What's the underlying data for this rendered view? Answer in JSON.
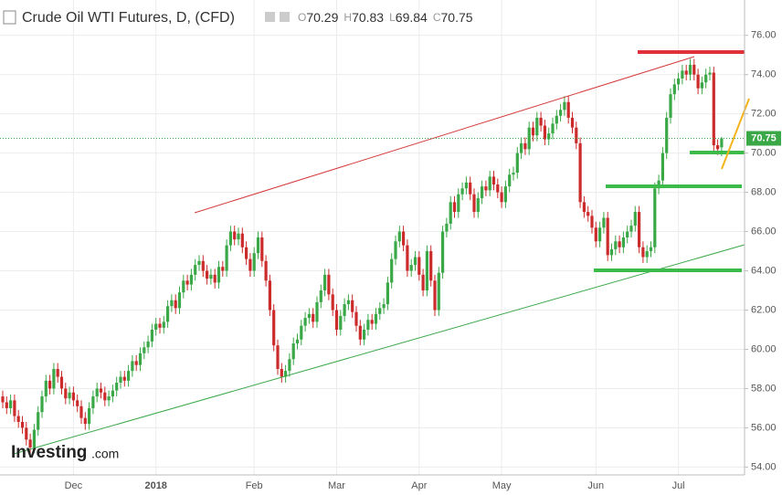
{
  "chart_data": {
    "type": "candlestick",
    "title": "Crude Oil WTI Futures, D, (CFD)",
    "header_labels": [
      "O",
      "H",
      "L",
      "C"
    ],
    "logo": {
      "name": "Investing",
      "suffix": ".com"
    },
    "up_color": "#3aa847",
    "down_color": "#cc2b2b",
    "grid": true,
    "ylim": [
      53.6,
      77.8
    ],
    "yticks": [
      {
        "value": 54,
        "label": "54.00"
      },
      {
        "value": 56,
        "label": "56.00"
      },
      {
        "value": 58,
        "label": "58.00"
      },
      {
        "value": 60,
        "label": "60.00"
      },
      {
        "value": 62,
        "label": "62.00"
      },
      {
        "value": 64,
        "label": "64.00"
      },
      {
        "value": 66,
        "label": "66.00"
      },
      {
        "value": 68,
        "label": "68.00"
      },
      {
        "value": 70,
        "label": "70.00"
      },
      {
        "value": 72,
        "label": "72.00"
      },
      {
        "value": 74,
        "label": "74.00"
      },
      {
        "value": 76,
        "label": "76.00"
      }
    ],
    "categories": [
      null,
      null,
      null,
      null,
      null,
      null,
      null,
      null,
      null,
      null,
      null,
      null,
      null,
      null,
      null,
      null,
      null,
      null,
      "Dec",
      null,
      null,
      null,
      null,
      null,
      null,
      null,
      null,
      null,
      null,
      null,
      null,
      null,
      null,
      null,
      null,
      null,
      null,
      null,
      null,
      "2018",
      null,
      null,
      null,
      null,
      null,
      null,
      null,
      null,
      null,
      null,
      null,
      null,
      null,
      null,
      null,
      null,
      null,
      null,
      null,
      null,
      null,
      null,
      null,
      null,
      "Feb",
      null,
      null,
      null,
      null,
      null,
      null,
      null,
      null,
      null,
      null,
      null,
      null,
      null,
      null,
      null,
      null,
      null,
      null,
      null,
      null,
      "Mar",
      null,
      null,
      null,
      null,
      null,
      null,
      null,
      null,
      null,
      null,
      null,
      null,
      null,
      null,
      null,
      null,
      null,
      null,
      null,
      null,
      "Apr",
      null,
      null,
      null,
      null,
      null,
      null,
      null,
      null,
      null,
      null,
      null,
      null,
      null,
      null,
      null,
      null,
      null,
      null,
      null,
      null,
      "May",
      null,
      null,
      null,
      null,
      null,
      null,
      null,
      null,
      null,
      null,
      null,
      null,
      null,
      null,
      null,
      null,
      null,
      null,
      null,
      null,
      null,
      null,
      null,
      "Jun",
      null,
      null,
      null,
      null,
      null,
      null,
      null,
      null,
      null,
      null,
      null,
      null,
      null,
      null,
      null,
      null,
      null,
      null,
      null,
      null,
      "Jul",
      null,
      null,
      null,
      null,
      null,
      null,
      null,
      null,
      null,
      null,
      null
    ],
    "ohlc": [
      [
        57.6,
        57.9,
        57.0,
        57.3
      ],
      [
        57.3,
        57.6,
        56.7,
        57.0
      ],
      [
        57.0,
        57.7,
        56.7,
        57.4
      ],
      [
        57.4,
        57.7,
        56.3,
        56.6
      ],
      [
        56.6,
        56.9,
        56.0,
        56.3
      ],
      [
        56.3,
        56.6,
        55.7,
        56.0
      ],
      [
        56.0,
        56.3,
        55.1,
        55.4
      ],
      [
        55.4,
        55.7,
        54.7,
        55.0
      ],
      [
        55.0,
        56.2,
        54.7,
        55.9
      ],
      [
        55.9,
        57.1,
        55.6,
        56.8
      ],
      [
        56.8,
        57.9,
        56.5,
        57.6
      ],
      [
        57.6,
        58.7,
        57.3,
        58.4
      ],
      [
        58.4,
        58.7,
        57.7,
        58.0
      ],
      [
        58.0,
        59.3,
        57.7,
        59.0
      ],
      [
        59.0,
        59.3,
        58.3,
        58.6
      ],
      [
        58.6,
        58.9,
        57.7,
        58.0
      ],
      [
        58.0,
        58.3,
        57.2,
        57.5
      ],
      [
        57.5,
        58.1,
        57.2,
        57.8
      ],
      [
        57.8,
        58.1,
        57.1,
        57.4
      ],
      [
        57.4,
        57.7,
        56.8,
        57.1
      ],
      [
        57.1,
        57.4,
        56.2,
        56.5
      ],
      [
        56.5,
        56.8,
        55.9,
        56.2
      ],
      [
        56.2,
        57.3,
        55.9,
        57.0
      ],
      [
        57.0,
        57.9,
        56.7,
        57.6
      ],
      [
        57.6,
        58.3,
        57.3,
        58.0
      ],
      [
        58.0,
        58.3,
        57.5,
        57.8
      ],
      [
        57.8,
        58.1,
        57.1,
        57.4
      ],
      [
        57.4,
        57.9,
        57.1,
        57.6
      ],
      [
        57.6,
        58.2,
        57.3,
        57.9
      ],
      [
        57.9,
        58.6,
        57.6,
        58.3
      ],
      [
        58.3,
        58.9,
        58.0,
        58.6
      ],
      [
        58.6,
        58.9,
        58.1,
        58.4
      ],
      [
        58.4,
        59.2,
        58.1,
        58.9
      ],
      [
        58.9,
        59.7,
        58.6,
        59.4
      ],
      [
        59.4,
        59.7,
        58.9,
        59.2
      ],
      [
        59.2,
        60.1,
        58.9,
        59.8
      ],
      [
        59.8,
        60.4,
        59.5,
        60.1
      ],
      [
        60.1,
        60.7,
        59.8,
        60.4
      ],
      [
        60.4,
        61.3,
        60.1,
        61.0
      ],
      [
        61.0,
        61.6,
        60.7,
        61.3
      ],
      [
        61.3,
        61.6,
        60.8,
        61.1
      ],
      [
        61.1,
        61.7,
        60.8,
        61.4
      ],
      [
        61.4,
        62.5,
        61.1,
        62.2
      ],
      [
        62.2,
        62.8,
        61.9,
        62.5
      ],
      [
        62.5,
        62.8,
        61.8,
        62.1
      ],
      [
        62.1,
        63.2,
        61.8,
        62.9
      ],
      [
        62.9,
        63.8,
        62.6,
        63.5
      ],
      [
        63.5,
        63.8,
        63.0,
        63.3
      ],
      [
        63.3,
        64.1,
        63.0,
        63.8
      ],
      [
        63.8,
        64.6,
        63.5,
        64.3
      ],
      [
        64.3,
        64.8,
        64.0,
        64.5
      ],
      [
        64.5,
        64.8,
        63.7,
        64.0
      ],
      [
        64.0,
        64.3,
        63.3,
        63.6
      ],
      [
        63.6,
        64.1,
        63.3,
        63.8
      ],
      [
        63.8,
        64.1,
        63.1,
        63.4
      ],
      [
        63.4,
        64.5,
        63.1,
        64.2
      ],
      [
        64.2,
        64.5,
        63.7,
        64.0
      ],
      [
        64.0,
        65.6,
        63.7,
        65.3
      ],
      [
        65.3,
        66.3,
        65.0,
        66.0
      ],
      [
        66.0,
        66.3,
        65.3,
        65.6
      ],
      [
        65.6,
        66.2,
        65.3,
        65.9
      ],
      [
        65.9,
        66.2,
        64.9,
        65.2
      ],
      [
        65.2,
        65.5,
        64.3,
        64.6
      ],
      [
        64.6,
        64.9,
        63.7,
        64.0
      ],
      [
        64.0,
        65.2,
        63.7,
        64.9
      ],
      [
        64.9,
        66.0,
        64.6,
        65.7
      ],
      [
        65.7,
        66.0,
        64.2,
        64.5
      ],
      [
        64.5,
        64.8,
        63.2,
        63.5
      ],
      [
        63.5,
        63.8,
        61.7,
        62.0
      ],
      [
        62.0,
        62.3,
        59.9,
        60.2
      ],
      [
        60.2,
        60.5,
        58.7,
        59.0
      ],
      [
        59.0,
        59.3,
        58.3,
        58.6
      ],
      [
        58.6,
        59.2,
        58.3,
        58.9
      ],
      [
        58.9,
        59.8,
        58.6,
        59.5
      ],
      [
        59.5,
        60.6,
        59.2,
        60.3
      ],
      [
        60.3,
        60.8,
        60.0,
        60.5
      ],
      [
        60.5,
        61.5,
        60.2,
        61.2
      ],
      [
        61.2,
        61.9,
        60.9,
        61.6
      ],
      [
        61.6,
        62.1,
        61.3,
        61.8
      ],
      [
        61.8,
        62.1,
        61.1,
        61.4
      ],
      [
        61.4,
        62.7,
        61.1,
        62.4
      ],
      [
        62.4,
        63.3,
        62.1,
        63.0
      ],
      [
        63.0,
        64.1,
        62.7,
        63.8
      ],
      [
        63.8,
        64.1,
        62.5,
        62.8
      ],
      [
        62.8,
        63.1,
        61.7,
        62.0
      ],
      [
        62.0,
        62.3,
        60.7,
        61.0
      ],
      [
        61.0,
        62.0,
        60.7,
        61.7
      ],
      [
        61.7,
        62.6,
        61.4,
        62.3
      ],
      [
        62.3,
        62.8,
        62.0,
        62.5
      ],
      [
        62.5,
        62.8,
        61.6,
        61.9
      ],
      [
        61.9,
        62.2,
        60.9,
        61.2
      ],
      [
        61.2,
        61.5,
        60.2,
        60.5
      ],
      [
        60.5,
        61.3,
        60.2,
        61.0
      ],
      [
        61.0,
        61.8,
        60.7,
        61.5
      ],
      [
        61.5,
        61.8,
        61.0,
        61.3
      ],
      [
        61.3,
        62.1,
        61.0,
        61.8
      ],
      [
        61.8,
        62.4,
        61.5,
        62.1
      ],
      [
        62.1,
        62.6,
        61.8,
        62.3
      ],
      [
        62.3,
        63.7,
        62.0,
        63.4
      ],
      [
        63.4,
        64.9,
        63.1,
        64.6
      ],
      [
        64.6,
        65.8,
        64.3,
        65.5
      ],
      [
        65.5,
        66.3,
        65.2,
        66.0
      ],
      [
        66.0,
        66.3,
        65.0,
        65.3
      ],
      [
        65.3,
        65.6,
        63.7,
        64.0
      ],
      [
        64.0,
        64.6,
        63.7,
        64.3
      ],
      [
        64.3,
        65.0,
        64.0,
        64.7
      ],
      [
        64.7,
        65.0,
        63.5,
        63.8
      ],
      [
        63.8,
        64.1,
        62.7,
        63.0
      ],
      [
        63.0,
        65.3,
        62.7,
        65.0
      ],
      [
        65.0,
        65.3,
        63.2,
        63.5
      ],
      [
        63.5,
        63.8,
        61.7,
        62.0
      ],
      [
        62.0,
        64.2,
        61.7,
        63.9
      ],
      [
        63.9,
        66.3,
        63.6,
        66.0
      ],
      [
        66.0,
        66.7,
        65.7,
        66.4
      ],
      [
        66.4,
        67.8,
        66.1,
        67.5
      ],
      [
        67.5,
        67.8,
        66.7,
        67.0
      ],
      [
        67.0,
        68.2,
        66.7,
        67.9
      ],
      [
        67.9,
        68.5,
        67.6,
        68.2
      ],
      [
        68.2,
        68.8,
        67.9,
        68.5
      ],
      [
        68.5,
        68.8,
        67.6,
        67.9
      ],
      [
        67.9,
        68.2,
        66.7,
        67.0
      ],
      [
        67.0,
        68.0,
        66.7,
        67.7
      ],
      [
        67.7,
        68.6,
        67.4,
        68.3
      ],
      [
        68.3,
        68.6,
        67.8,
        68.1
      ],
      [
        68.1,
        69.1,
        67.8,
        68.8
      ],
      [
        68.8,
        69.1,
        68.1,
        68.4
      ],
      [
        68.4,
        68.7,
        67.7,
        68.0
      ],
      [
        68.0,
        68.3,
        67.2,
        67.5
      ],
      [
        67.5,
        68.6,
        67.2,
        68.3
      ],
      [
        68.3,
        69.2,
        68.0,
        68.9
      ],
      [
        68.9,
        69.3,
        68.6,
        69.0
      ],
      [
        69.0,
        70.3,
        68.7,
        70.0
      ],
      [
        70.0,
        70.8,
        69.7,
        70.5
      ],
      [
        70.5,
        70.8,
        69.9,
        70.2
      ],
      [
        70.2,
        71.6,
        69.9,
        71.3
      ],
      [
        71.3,
        71.6,
        70.6,
        70.9
      ],
      [
        70.9,
        72.1,
        70.6,
        71.8
      ],
      [
        71.8,
        72.1,
        71.1,
        71.4
      ],
      [
        71.4,
        71.7,
        70.4,
        70.7
      ],
      [
        70.7,
        71.3,
        70.4,
        71.0
      ],
      [
        71.0,
        71.8,
        70.7,
        71.5
      ],
      [
        71.5,
        72.2,
        71.2,
        71.9
      ],
      [
        71.9,
        72.5,
        71.6,
        72.2
      ],
      [
        72.2,
        72.9,
        71.9,
        72.6
      ],
      [
        72.6,
        72.9,
        71.5,
        71.8
      ],
      [
        71.8,
        72.1,
        71.0,
        71.3
      ],
      [
        71.3,
        71.6,
        70.2,
        70.5
      ],
      [
        70.5,
        70.8,
        67.2,
        67.5
      ],
      [
        67.5,
        67.8,
        66.7,
        67.0
      ],
      [
        67.0,
        67.3,
        66.5,
        66.8
      ],
      [
        66.8,
        67.1,
        65.9,
        66.2
      ],
      [
        66.2,
        66.5,
        65.2,
        65.5
      ],
      [
        65.5,
        66.5,
        65.2,
        66.2
      ],
      [
        66.2,
        67.0,
        65.9,
        66.7
      ],
      [
        66.7,
        67.0,
        64.5,
        64.8
      ],
      [
        64.8,
        65.4,
        64.5,
        65.1
      ],
      [
        65.1,
        65.8,
        64.8,
        65.5
      ],
      [
        65.5,
        65.8,
        64.9,
        65.2
      ],
      [
        65.2,
        66.0,
        64.9,
        65.7
      ],
      [
        65.7,
        66.3,
        65.4,
        66.0
      ],
      [
        66.0,
        66.6,
        65.7,
        66.3
      ],
      [
        66.3,
        67.3,
        66.0,
        67.0
      ],
      [
        67.0,
        67.3,
        64.9,
        65.2
      ],
      [
        65.2,
        65.5,
        64.4,
        64.7
      ],
      [
        64.7,
        65.3,
        64.4,
        65.0
      ],
      [
        65.0,
        65.5,
        64.7,
        65.2
      ],
      [
        65.2,
        68.5,
        64.9,
        68.2
      ],
      [
        68.2,
        68.9,
        67.9,
        68.6
      ],
      [
        68.6,
        70.3,
        68.3,
        70.0
      ],
      [
        70.0,
        72.1,
        69.7,
        71.8
      ],
      [
        71.8,
        73.3,
        71.5,
        73.0
      ],
      [
        73.0,
        73.8,
        72.7,
        73.5
      ],
      [
        73.5,
        74.1,
        73.2,
        73.8
      ],
      [
        73.8,
        74.5,
        73.5,
        74.2
      ],
      [
        74.2,
        74.5,
        73.7,
        74.0
      ],
      [
        74.0,
        74.8,
        73.7,
        74.5
      ],
      [
        74.5,
        74.8,
        73.7,
        74.0
      ],
      [
        74.0,
        74.3,
        73.0,
        73.3
      ],
      [
        73.3,
        73.9,
        73.0,
        73.6
      ],
      [
        73.6,
        74.3,
        73.3,
        74.0
      ],
      [
        74.0,
        74.4,
        73.7,
        74.1
      ],
      [
        74.1,
        74.4,
        70.1,
        70.4
      ],
      [
        70.4,
        70.7,
        69.9,
        70.2
      ],
      [
        70.29,
        70.83,
        69.84,
        70.75
      ]
    ]
  }
}
